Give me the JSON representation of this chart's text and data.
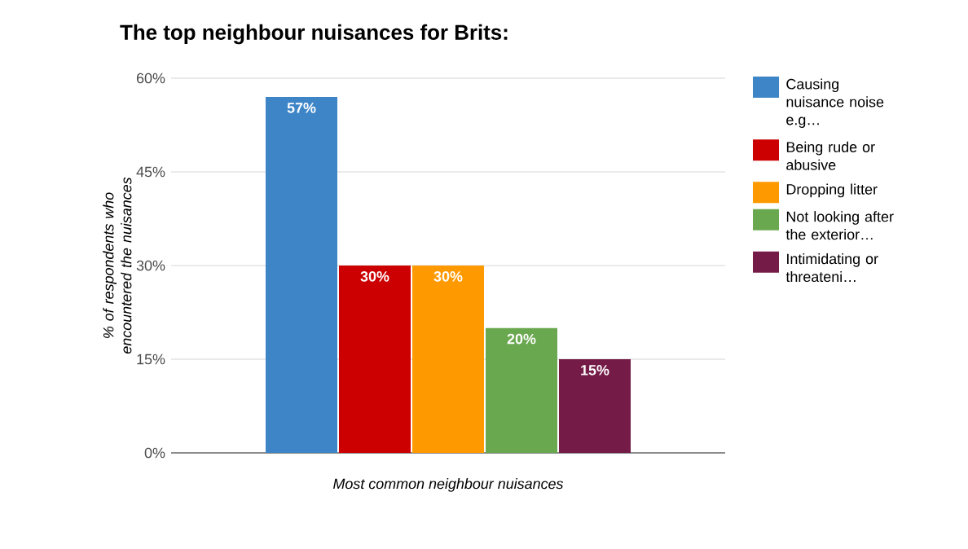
{
  "chart_data": {
    "type": "bar",
    "title": "The top neighbour nuisances for Brits:",
    "xlabel": "Most common neighbour nuisances",
    "ylabel": "% of respondents who encountered the nuisances",
    "categories": [
      null
    ],
    "series": [
      {
        "name": "Causing nuisance noise e.g…",
        "color": "#3d85c6",
        "values": [
          57
        ],
        "value_labels": [
          "57%"
        ]
      },
      {
        "name": "Being rude or abusive",
        "color": "#cc0000",
        "values": [
          30
        ],
        "value_labels": [
          "30%"
        ]
      },
      {
        "name": "Dropping litter",
        "color": "#ff9900",
        "values": [
          30
        ],
        "value_labels": [
          "30%"
        ]
      },
      {
        "name": "Not looking after the exterior…",
        "color": "#6aa84f",
        "values": [
          20
        ],
        "value_labels": [
          "20%"
        ]
      },
      {
        "name": "Intimidating or threateni…",
        "color": "#741b47",
        "values": [
          15
        ],
        "value_labels": [
          "15%"
        ]
      }
    ],
    "ylim": [
      0,
      60
    ],
    "yticks": [
      {
        "value": 0,
        "label": "0%"
      },
      {
        "value": 15,
        "label": "15%"
      },
      {
        "value": 30,
        "label": "30%"
      },
      {
        "value": 45,
        "label": "45%"
      },
      {
        "value": 60,
        "label": "60%"
      }
    ],
    "grid": "y",
    "legend": "right"
  }
}
